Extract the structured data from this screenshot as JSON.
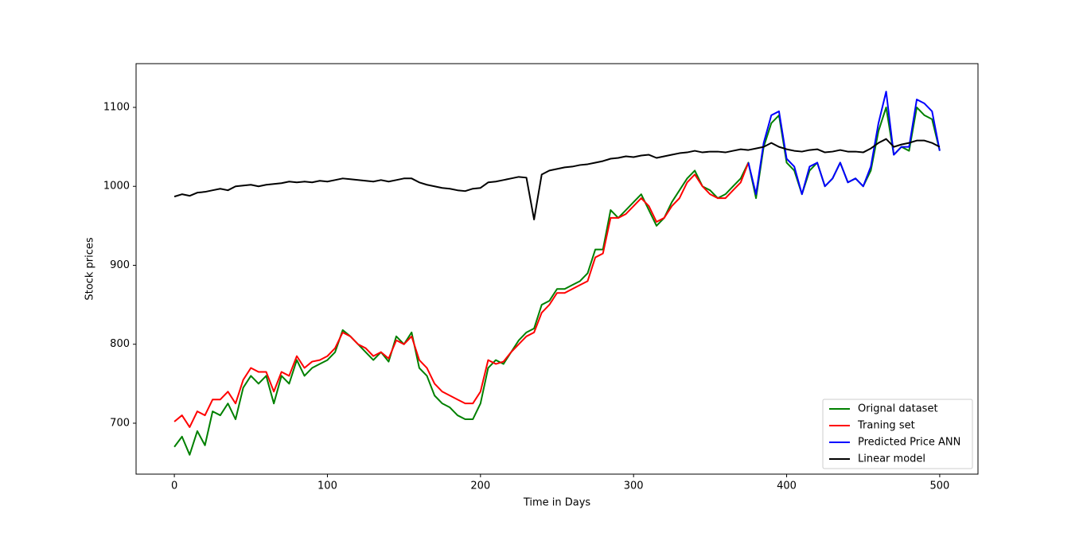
{
  "chart_data": {
    "type": "line",
    "xlabel": "Time in Days",
    "ylabel": "Stock prices",
    "xlim": [
      -25,
      525
    ],
    "ylim": [
      635.5,
      1155.4
    ],
    "xticks": [
      0,
      100,
      200,
      300,
      400,
      500
    ],
    "yticks": [
      700,
      800,
      900,
      1000,
      1100
    ],
    "grid": false,
    "legend": "lower right",
    "series": [
      {
        "name": "Orignal dataset",
        "color": "#008000",
        "x": [
          0,
          5,
          10,
          15,
          20,
          25,
          30,
          35,
          40,
          45,
          50,
          55,
          60,
          65,
          70,
          75,
          80,
          85,
          90,
          95,
          100,
          105,
          110,
          115,
          120,
          125,
          130,
          135,
          140,
          145,
          150,
          155,
          160,
          165,
          170,
          175,
          180,
          185,
          190,
          195,
          200,
          205,
          210,
          215,
          220,
          225,
          230,
          235,
          240,
          245,
          250,
          255,
          260,
          265,
          270,
          275,
          280,
          285,
          290,
          295,
          300,
          305,
          310,
          315,
          320,
          325,
          330,
          335,
          340,
          345,
          350,
          355,
          360,
          365,
          370,
          375,
          380,
          385,
          390,
          395,
          400,
          405,
          410,
          415,
          420,
          425,
          430,
          435,
          440,
          445,
          450,
          455,
          460,
          465,
          470,
          475,
          480,
          485,
          490,
          495,
          500
        ],
        "values": [
          670,
          683,
          660,
          690,
          672,
          715,
          710,
          725,
          705,
          745,
          760,
          750,
          760,
          725,
          760,
          750,
          780,
          760,
          770,
          775,
          780,
          790,
          818,
          810,
          800,
          790,
          780,
          790,
          778,
          810,
          800,
          815,
          770,
          760,
          735,
          725,
          720,
          710,
          705,
          705,
          725,
          770,
          780,
          775,
          790,
          805,
          815,
          820,
          850,
          855,
          870,
          870,
          875,
          880,
          890,
          920,
          920,
          970,
          960,
          970,
          980,
          990,
          970,
          950,
          960,
          980,
          995,
          1010,
          1020,
          1000,
          995,
          985,
          990,
          1000,
          1010,
          1030,
          985,
          1050,
          1080,
          1090,
          1030,
          1020,
          990,
          1020,
          1030,
          1000,
          1010,
          1030,
          1005,
          1010,
          1000,
          1020,
          1070,
          1100,
          1040,
          1050,
          1045,
          1100,
          1090,
          1085,
          1045
        ]
      },
      {
        "name": "Traning set",
        "color": "#ff0000",
        "x": [
          0,
          5,
          10,
          15,
          20,
          25,
          30,
          35,
          40,
          45,
          50,
          55,
          60,
          65,
          70,
          75,
          80,
          85,
          90,
          95,
          100,
          105,
          110,
          115,
          120,
          125,
          130,
          135,
          140,
          145,
          150,
          155,
          160,
          165,
          170,
          175,
          180,
          185,
          190,
          195,
          200,
          205,
          210,
          215,
          220,
          225,
          230,
          235,
          240,
          245,
          250,
          255,
          260,
          265,
          270,
          275,
          280,
          285,
          290,
          295,
          300,
          305,
          310,
          315,
          320,
          325,
          330,
          335,
          340,
          345,
          350,
          355,
          360,
          365,
          370,
          375
        ],
        "values": [
          702,
          710,
          695,
          715,
          710,
          730,
          730,
          740,
          725,
          755,
          770,
          765,
          765,
          740,
          765,
          760,
          785,
          770,
          778,
          780,
          785,
          795,
          815,
          810,
          800,
          795,
          785,
          790,
          782,
          805,
          800,
          810,
          780,
          770,
          750,
          740,
          735,
          730,
          725,
          725,
          740,
          780,
          775,
          778,
          790,
          800,
          810,
          815,
          840,
          850,
          865,
          865,
          870,
          875,
          880,
          910,
          915,
          960,
          960,
          965,
          975,
          985,
          975,
          955,
          960,
          975,
          985,
          1005,
          1015,
          1000,
          990,
          985,
          985,
          995,
          1005,
          1030
        ]
      },
      {
        "name": "Predicted Price ANN",
        "color": "#0000ff",
        "x": [
          375,
          380,
          385,
          390,
          395,
          400,
          405,
          410,
          415,
          420,
          425,
          430,
          435,
          440,
          445,
          450,
          455,
          460,
          465,
          470,
          475,
          480,
          485,
          490,
          495,
          500
        ],
        "values": [
          1030,
          990,
          1055,
          1090,
          1095,
          1035,
          1025,
          990,
          1025,
          1030,
          1000,
          1010,
          1030,
          1005,
          1010,
          1000,
          1025,
          1080,
          1120,
          1040,
          1050,
          1050,
          1110,
          1105,
          1095,
          1045
        ]
      },
      {
        "name": "Linear model",
        "color": "#000000",
        "x": [
          0,
          5,
          10,
          15,
          20,
          25,
          30,
          35,
          40,
          45,
          50,
          55,
          60,
          65,
          70,
          75,
          80,
          85,
          90,
          95,
          100,
          105,
          110,
          115,
          120,
          125,
          130,
          135,
          140,
          145,
          150,
          155,
          160,
          165,
          170,
          175,
          180,
          185,
          190,
          195,
          200,
          205,
          210,
          215,
          220,
          225,
          230,
          235,
          240,
          245,
          250,
          255,
          260,
          265,
          270,
          275,
          280,
          285,
          290,
          295,
          300,
          305,
          310,
          315,
          320,
          325,
          330,
          335,
          340,
          345,
          350,
          355,
          360,
          365,
          370,
          375,
          380,
          385,
          390,
          395,
          400,
          405,
          410,
          415,
          420,
          425,
          430,
          435,
          440,
          445,
          450,
          455,
          460,
          465,
          470,
          475,
          480,
          485,
          490,
          495,
          500
        ],
        "values": [
          987,
          990,
          988,
          992,
          993,
          995,
          997,
          995,
          1000,
          1001,
          1002,
          1000,
          1002,
          1003,
          1004,
          1006,
          1005,
          1006,
          1005,
          1007,
          1006,
          1008,
          1010,
          1009,
          1008,
          1007,
          1006,
          1008,
          1006,
          1008,
          1010,
          1010,
          1005,
          1002,
          1000,
          998,
          997,
          995,
          994,
          997,
          998,
          1005,
          1006,
          1008,
          1010,
          1012,
          1011,
          958,
          1015,
          1020,
          1022,
          1024,
          1025,
          1027,
          1028,
          1030,
          1032,
          1035,
          1036,
          1038,
          1037,
          1039,
          1040,
          1036,
          1038,
          1040,
          1042,
          1043,
          1045,
          1043,
          1044,
          1044,
          1043,
          1045,
          1047,
          1046,
          1048,
          1050,
          1055,
          1050,
          1047,
          1045,
          1044,
          1046,
          1047,
          1043,
          1044,
          1046,
          1044,
          1044,
          1043,
          1048,
          1055,
          1060,
          1050,
          1053,
          1055,
          1058,
          1058,
          1055,
          1050
        ]
      }
    ]
  }
}
